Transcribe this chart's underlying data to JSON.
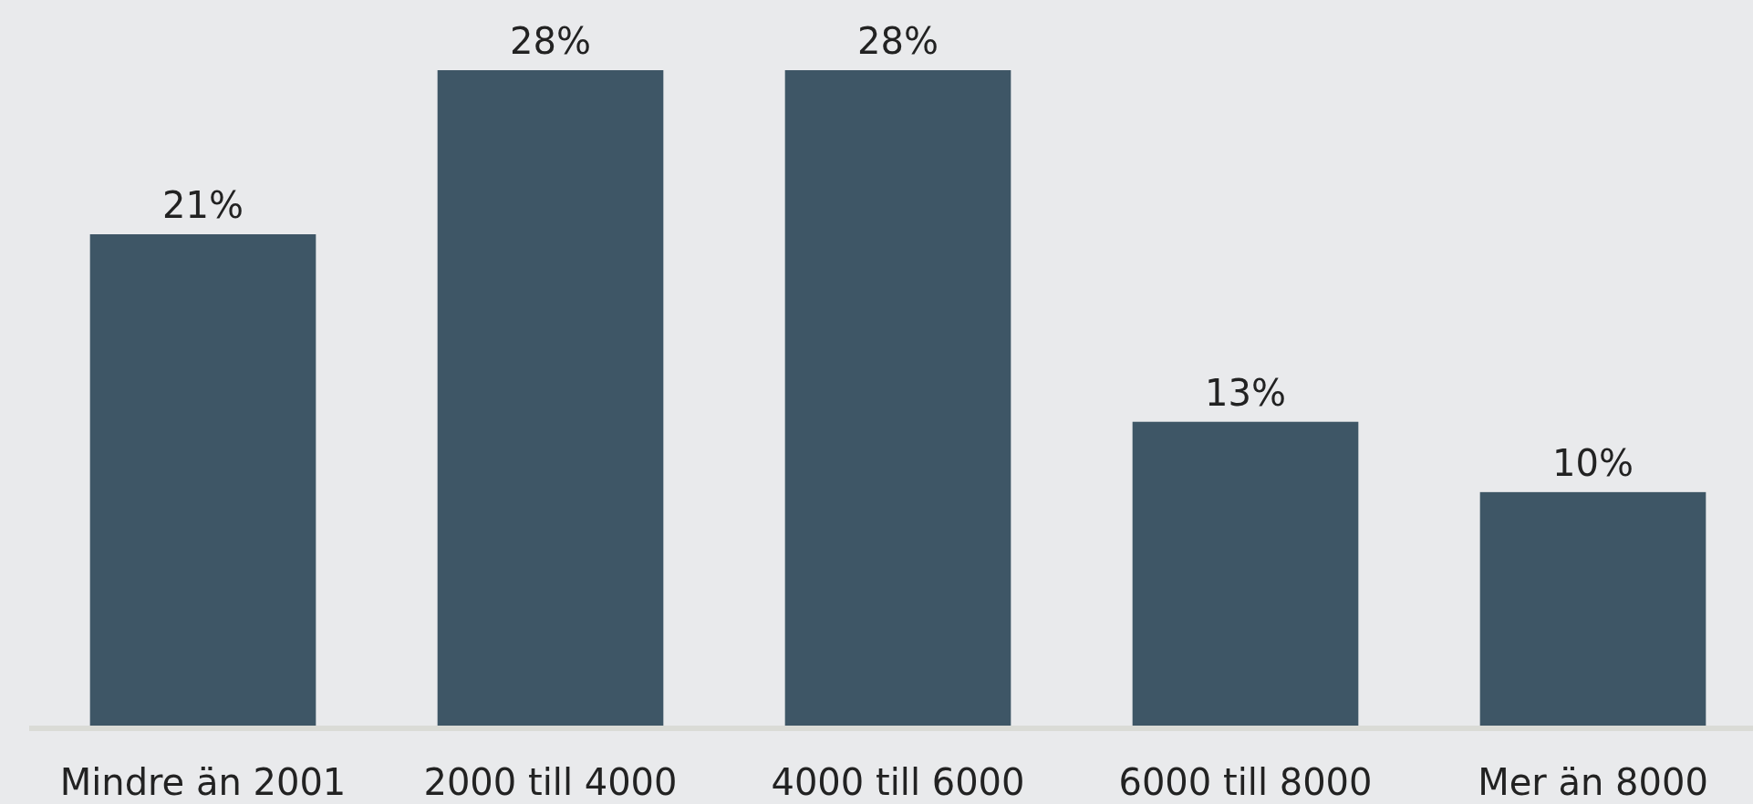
{
  "chart_data": {
    "type": "bar",
    "categories": [
      "Mindre än 2001",
      "2000 till 4000",
      "4000 till 6000",
      "6000 till 8000",
      "Mer än 8000"
    ],
    "values": [
      21,
      28,
      28,
      13,
      10
    ],
    "color": "#3e5666",
    "data_labels": true,
    "value_labels": [
      "21%",
      "28%",
      "28%",
      "13%",
      "10%"
    ]
  }
}
